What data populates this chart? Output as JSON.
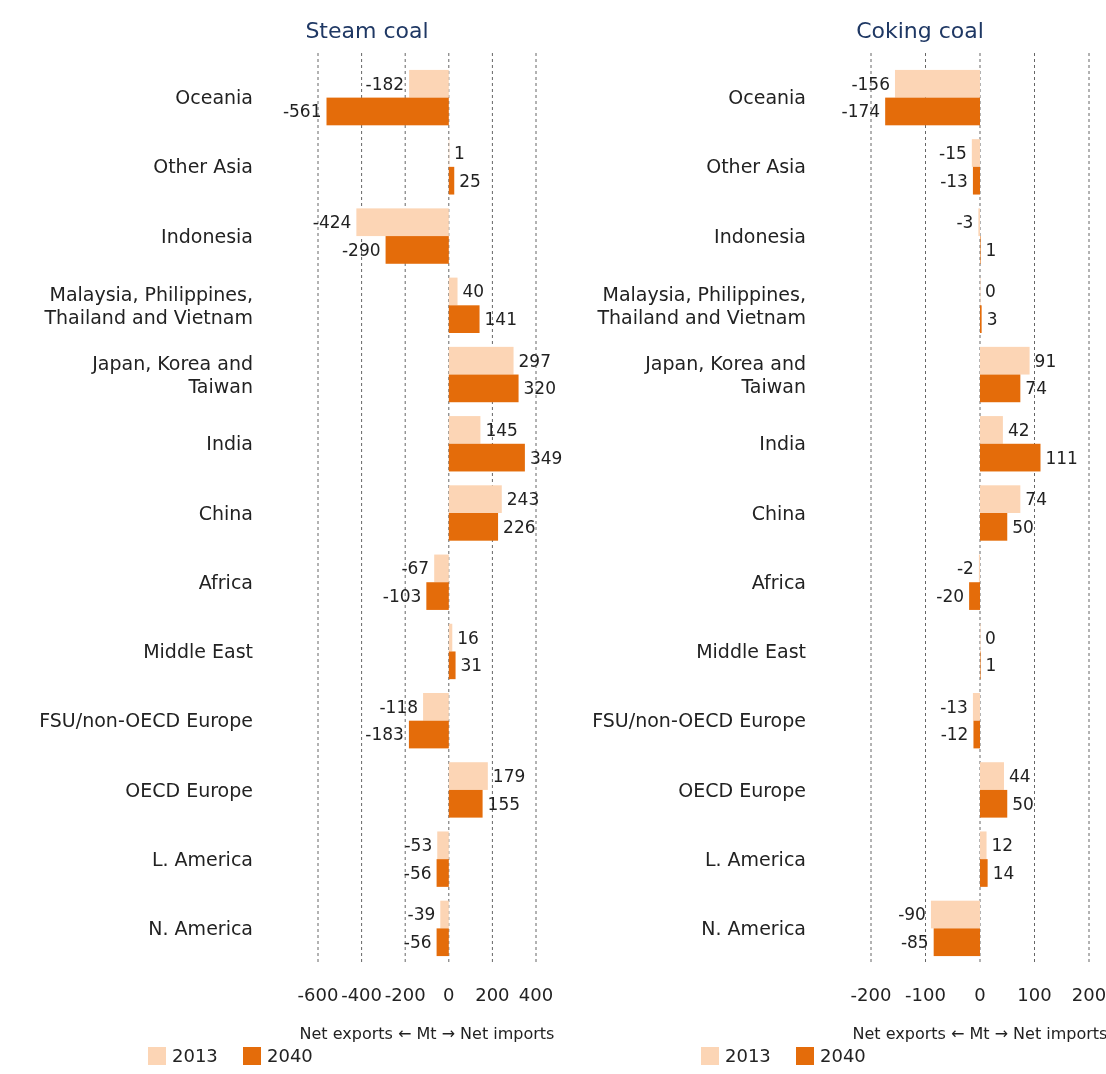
{
  "chart_data": [
    {
      "type": "bar",
      "orientation": "horizontal",
      "title": "Steam coal",
      "categories": [
        "Oceania",
        "Other Asia",
        "Indonesia",
        "Malaysia, Philippines, Thailand and Vietnam",
        "Japan, Korea and Taiwan",
        "India",
        "China",
        "Africa",
        "Middle East",
        "FSU/non-OECD Europe",
        "OECD Europe",
        "L. America",
        "N. America"
      ],
      "series": [
        {
          "name": "2013",
          "color": "#fcd5b5",
          "values": [
            -182,
            1,
            -424,
            40,
            297,
            145,
            243,
            -67,
            16,
            -118,
            179,
            -53,
            -39
          ]
        },
        {
          "name": "2040",
          "color": "#e46c0a",
          "values": [
            -561,
            25,
            -290,
            141,
            320,
            349,
            226,
            -103,
            31,
            -183,
            155,
            -56,
            -56
          ]
        }
      ],
      "xlim": [
        -600,
        400
      ],
      "xticks": [
        -600,
        -400,
        -200,
        0,
        200,
        400
      ],
      "grid": "x",
      "data_labels": true,
      "legend": "bottom",
      "xlabel": "Net exports ← Mt → Net imports"
    },
    {
      "type": "bar",
      "orientation": "horizontal",
      "title": "Coking coal",
      "categories": [
        "Oceania",
        "Other Asia",
        "Indonesia",
        "Malaysia, Philippines, Thailand and Vietnam",
        "Japan, Korea and Taiwan",
        "India",
        "China",
        "Africa",
        "Middle East",
        "FSU/non-OECD Europe",
        "OECD Europe",
        "L. America",
        "N. America"
      ],
      "series": [
        {
          "name": "2013",
          "color": "#fcd5b5",
          "values": [
            -156,
            -15,
            -3,
            0,
            91,
            42,
            74,
            -2,
            0,
            -13,
            44,
            12,
            -90
          ]
        },
        {
          "name": "2040",
          "color": "#e46c0a",
          "values": [
            -174,
            -13,
            1,
            3,
            74,
            111,
            50,
            -20,
            1,
            -12,
            50,
            14,
            -85
          ]
        }
      ],
      "xlim": [
        -200,
        200
      ],
      "xticks": [
        -200,
        -100,
        0,
        100,
        200
      ],
      "grid": "x",
      "data_labels": true,
      "legend": "bottom",
      "xlabel": "Net exports ← Mt → Net imports"
    }
  ]
}
